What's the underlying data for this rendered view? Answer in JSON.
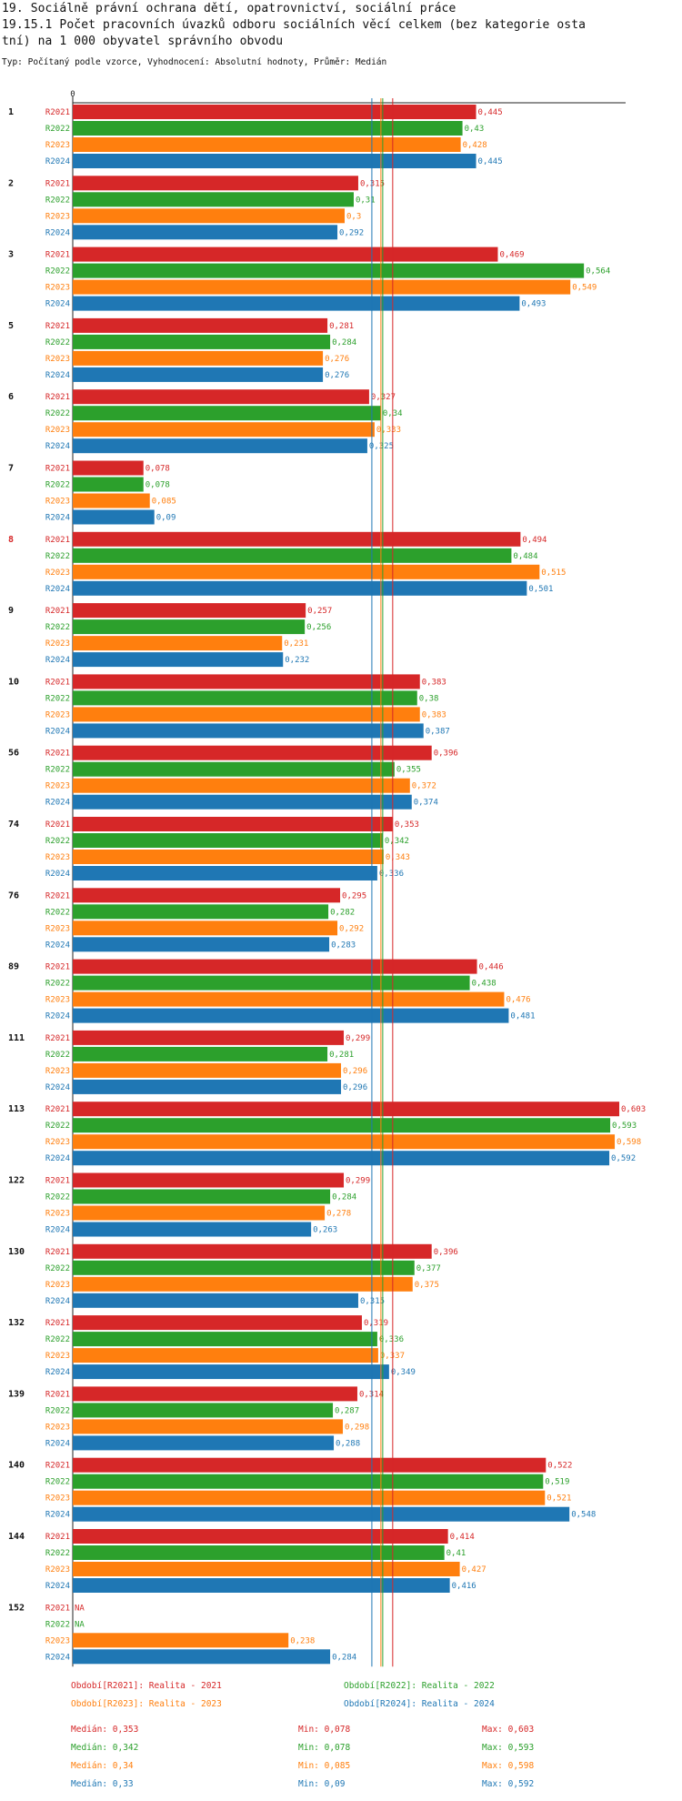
{
  "header": {
    "line1": "19. Sociálně právní ochrana dětí, opatrovnictví, sociální práce",
    "line2": "19.15.1 Počet pracovních úvazků odboru sociálních věcí celkem (bez kategorie osta",
    "line3": "tní) na 1 000 obyvatel správního obvodu",
    "line4": "Typ: Počítaný podle vzorce, Vyhodnocení: Absolutní hodnoty, Průměr: Medián"
  },
  "chart_data": {
    "type": "bar",
    "orientation": "horizontal",
    "axis_zero_label": "0",
    "xlim": [
      0,
      0.61
    ],
    "series_labels": [
      "R2021",
      "R2022",
      "R2023",
      "R2024"
    ],
    "colors": [
      "#d62728",
      "#2ca02c",
      "#ff7f0e",
      "#1f77b4"
    ],
    "highlight_color": "#d62728",
    "highlight_group": "8",
    "groups": [
      {
        "label": "1",
        "values": [
          0.445,
          0.43,
          0.428,
          0.445
        ],
        "labels": [
          "0,445",
          "0,43",
          "0,428",
          "0,445"
        ]
      },
      {
        "label": "2",
        "values": [
          0.315,
          0.31,
          0.3,
          0.292
        ],
        "labels": [
          "0,315",
          "0,31",
          "0,3",
          "0,292"
        ]
      },
      {
        "label": "3",
        "values": [
          0.469,
          0.564,
          0.549,
          0.493
        ],
        "labels": [
          "0,469",
          "0,564",
          "0,549",
          "0,493"
        ]
      },
      {
        "label": "5",
        "values": [
          0.281,
          0.284,
          0.276,
          0.276
        ],
        "labels": [
          "0,281",
          "0,284",
          "0,276",
          "0,276"
        ]
      },
      {
        "label": "6",
        "values": [
          0.327,
          0.34,
          0.333,
          0.325
        ],
        "labels": [
          "0,327",
          "0,34",
          "0,333",
          "0,325"
        ]
      },
      {
        "label": "7",
        "values": [
          0.078,
          0.078,
          0.085,
          0.09
        ],
        "labels": [
          "0,078",
          "0,078",
          "0,085",
          "0,09"
        ]
      },
      {
        "label": "8",
        "values": [
          0.494,
          0.484,
          0.515,
          0.501
        ],
        "labels": [
          "0,494",
          "0,484",
          "0,515",
          "0,501"
        ]
      },
      {
        "label": "9",
        "values": [
          0.257,
          0.256,
          0.231,
          0.232
        ],
        "labels": [
          "0,257",
          "0,256",
          "0,231",
          "0,232"
        ]
      },
      {
        "label": "10",
        "values": [
          0.383,
          0.38,
          0.383,
          0.387
        ],
        "labels": [
          "0,383",
          "0,38",
          "0,383",
          "0,387"
        ]
      },
      {
        "label": "56",
        "values": [
          0.396,
          0.355,
          0.372,
          0.374
        ],
        "labels": [
          "0,396",
          "0,355",
          "0,372",
          "0,374"
        ]
      },
      {
        "label": "74",
        "values": [
          0.353,
          0.342,
          0.343,
          0.336
        ],
        "labels": [
          "0,353",
          "0,342",
          "0,343",
          "0,336"
        ]
      },
      {
        "label": "76",
        "values": [
          0.295,
          0.282,
          0.292,
          0.283
        ],
        "labels": [
          "0,295",
          "0,282",
          "0,292",
          "0,283"
        ]
      },
      {
        "label": "89",
        "values": [
          0.446,
          0.438,
          0.476,
          0.481
        ],
        "labels": [
          "0,446",
          "0,438",
          "0,476",
          "0,481"
        ]
      },
      {
        "label": "111",
        "values": [
          0.299,
          0.281,
          0.296,
          0.296
        ],
        "labels": [
          "0,299",
          "0,281",
          "0,296",
          "0,296"
        ]
      },
      {
        "label": "113",
        "values": [
          0.603,
          0.593,
          0.598,
          0.592
        ],
        "labels": [
          "0,603",
          "0,593",
          "0,598",
          "0,592"
        ]
      },
      {
        "label": "122",
        "values": [
          0.299,
          0.284,
          0.278,
          0.263
        ],
        "labels": [
          "0,299",
          "0,284",
          "0,278",
          "0,263"
        ]
      },
      {
        "label": "130",
        "values": [
          0.396,
          0.377,
          0.375,
          0.315
        ],
        "labels": [
          "0,396",
          "0,377",
          "0,375",
          "0,315"
        ]
      },
      {
        "label": "132",
        "values": [
          0.319,
          0.336,
          0.337,
          0.349
        ],
        "labels": [
          "0,319",
          "0,336",
          "0,337",
          "0,349"
        ]
      },
      {
        "label": "139",
        "values": [
          0.314,
          0.287,
          0.298,
          0.288
        ],
        "labels": [
          "0,314",
          "0,287",
          "0,298",
          "0,288"
        ]
      },
      {
        "label": "140",
        "values": [
          0.522,
          0.519,
          0.521,
          0.548
        ],
        "labels": [
          "0,522",
          "0,519",
          "0,521",
          "0,548"
        ]
      },
      {
        "label": "144",
        "values": [
          0.414,
          0.41,
          0.427,
          0.416
        ],
        "labels": [
          "0,414",
          "0,41",
          "0,427",
          "0,416"
        ]
      },
      {
        "label": "152",
        "values": [
          null,
          null,
          0.238,
          0.284
        ],
        "labels": [
          "NA",
          "NA",
          "0,238",
          "0,284"
        ]
      }
    ],
    "reference_lines": {
      "medians": [
        0.353,
        0.342,
        0.34,
        0.33
      ]
    },
    "legend": [
      {
        "text": "Období[R2021]: Realita - 2021",
        "series": 0
      },
      {
        "text": "Období[R2022]: Realita - 2022",
        "series": 1
      },
      {
        "text": "Období[R2023]: Realita - 2023",
        "series": 2
      },
      {
        "text": "Období[R2024]: Realita - 2024",
        "series": 3
      }
    ],
    "stats": [
      {
        "median": "Medián: 0,353",
        "min": "Min: 0,078",
        "max": "Max: 0,603"
      },
      {
        "median": "Medián: 0,342",
        "min": "Min: 0,078",
        "max": "Max: 0,593"
      },
      {
        "median": "Medián: 0,34",
        "min": "Min: 0,085",
        "max": "Max: 0,598"
      },
      {
        "median": "Medián: 0,33",
        "min": "Min: 0,09",
        "max": "Max: 0,592"
      }
    ]
  }
}
